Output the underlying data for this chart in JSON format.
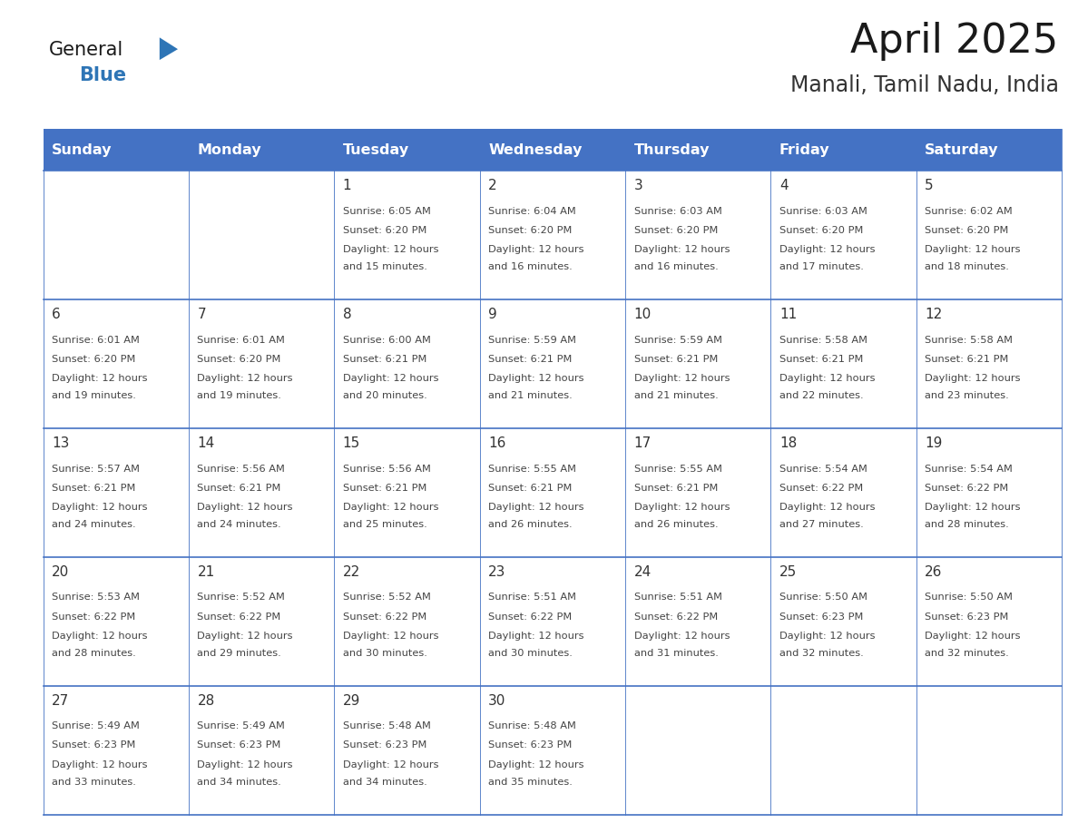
{
  "title": "April 2025",
  "subtitle": "Manali, Tamil Nadu, India",
  "days_of_week": [
    "Sunday",
    "Monday",
    "Tuesday",
    "Wednesday",
    "Thursday",
    "Friday",
    "Saturday"
  ],
  "header_bg": "#4472C4",
  "header_text": "#FFFFFF",
  "border_color": "#4472C4",
  "day_num_color": "#333333",
  "cell_text_color": "#444444",
  "title_color": "#1a1a1a",
  "subtitle_color": "#333333",
  "logo_general_color": "#1a1a1a",
  "logo_blue_color": "#2E75B6",
  "calendar_data": [
    [
      null,
      null,
      {
        "day": 1,
        "sunrise": "6:05 AM",
        "sunset": "6:20 PM",
        "daylight": "12 hours and 15 minutes."
      },
      {
        "day": 2,
        "sunrise": "6:04 AM",
        "sunset": "6:20 PM",
        "daylight": "12 hours and 16 minutes."
      },
      {
        "day": 3,
        "sunrise": "6:03 AM",
        "sunset": "6:20 PM",
        "daylight": "12 hours and 16 minutes."
      },
      {
        "day": 4,
        "sunrise": "6:03 AM",
        "sunset": "6:20 PM",
        "daylight": "12 hours and 17 minutes."
      },
      {
        "day": 5,
        "sunrise": "6:02 AM",
        "sunset": "6:20 PM",
        "daylight": "12 hours and 18 minutes."
      }
    ],
    [
      {
        "day": 6,
        "sunrise": "6:01 AM",
        "sunset": "6:20 PM",
        "daylight": "12 hours and 19 minutes."
      },
      {
        "day": 7,
        "sunrise": "6:01 AM",
        "sunset": "6:20 PM",
        "daylight": "12 hours and 19 minutes."
      },
      {
        "day": 8,
        "sunrise": "6:00 AM",
        "sunset": "6:21 PM",
        "daylight": "12 hours and 20 minutes."
      },
      {
        "day": 9,
        "sunrise": "5:59 AM",
        "sunset": "6:21 PM",
        "daylight": "12 hours and 21 minutes."
      },
      {
        "day": 10,
        "sunrise": "5:59 AM",
        "sunset": "6:21 PM",
        "daylight": "12 hours and 21 minutes."
      },
      {
        "day": 11,
        "sunrise": "5:58 AM",
        "sunset": "6:21 PM",
        "daylight": "12 hours and 22 minutes."
      },
      {
        "day": 12,
        "sunrise": "5:58 AM",
        "sunset": "6:21 PM",
        "daylight": "12 hours and 23 minutes."
      }
    ],
    [
      {
        "day": 13,
        "sunrise": "5:57 AM",
        "sunset": "6:21 PM",
        "daylight": "12 hours and 24 minutes."
      },
      {
        "day": 14,
        "sunrise": "5:56 AM",
        "sunset": "6:21 PM",
        "daylight": "12 hours and 24 minutes."
      },
      {
        "day": 15,
        "sunrise": "5:56 AM",
        "sunset": "6:21 PM",
        "daylight": "12 hours and 25 minutes."
      },
      {
        "day": 16,
        "sunrise": "5:55 AM",
        "sunset": "6:21 PM",
        "daylight": "12 hours and 26 minutes."
      },
      {
        "day": 17,
        "sunrise": "5:55 AM",
        "sunset": "6:21 PM",
        "daylight": "12 hours and 26 minutes."
      },
      {
        "day": 18,
        "sunrise": "5:54 AM",
        "sunset": "6:22 PM",
        "daylight": "12 hours and 27 minutes."
      },
      {
        "day": 19,
        "sunrise": "5:54 AM",
        "sunset": "6:22 PM",
        "daylight": "12 hours and 28 minutes."
      }
    ],
    [
      {
        "day": 20,
        "sunrise": "5:53 AM",
        "sunset": "6:22 PM",
        "daylight": "12 hours and 28 minutes."
      },
      {
        "day": 21,
        "sunrise": "5:52 AM",
        "sunset": "6:22 PM",
        "daylight": "12 hours and 29 minutes."
      },
      {
        "day": 22,
        "sunrise": "5:52 AM",
        "sunset": "6:22 PM",
        "daylight": "12 hours and 30 minutes."
      },
      {
        "day": 23,
        "sunrise": "5:51 AM",
        "sunset": "6:22 PM",
        "daylight": "12 hours and 30 minutes."
      },
      {
        "day": 24,
        "sunrise": "5:51 AM",
        "sunset": "6:22 PM",
        "daylight": "12 hours and 31 minutes."
      },
      {
        "day": 25,
        "sunrise": "5:50 AM",
        "sunset": "6:23 PM",
        "daylight": "12 hours and 32 minutes."
      },
      {
        "day": 26,
        "sunrise": "5:50 AM",
        "sunset": "6:23 PM",
        "daylight": "12 hours and 32 minutes."
      }
    ],
    [
      {
        "day": 27,
        "sunrise": "5:49 AM",
        "sunset": "6:23 PM",
        "daylight": "12 hours and 33 minutes."
      },
      {
        "day": 28,
        "sunrise": "5:49 AM",
        "sunset": "6:23 PM",
        "daylight": "12 hours and 34 minutes."
      },
      {
        "day": 29,
        "sunrise": "5:48 AM",
        "sunset": "6:23 PM",
        "daylight": "12 hours and 34 minutes."
      },
      {
        "day": 30,
        "sunrise": "5:48 AM",
        "sunset": "6:23 PM",
        "daylight": "12 hours and 35 minutes."
      },
      null,
      null,
      null
    ]
  ],
  "fig_width": 11.88,
  "fig_height": 9.18
}
